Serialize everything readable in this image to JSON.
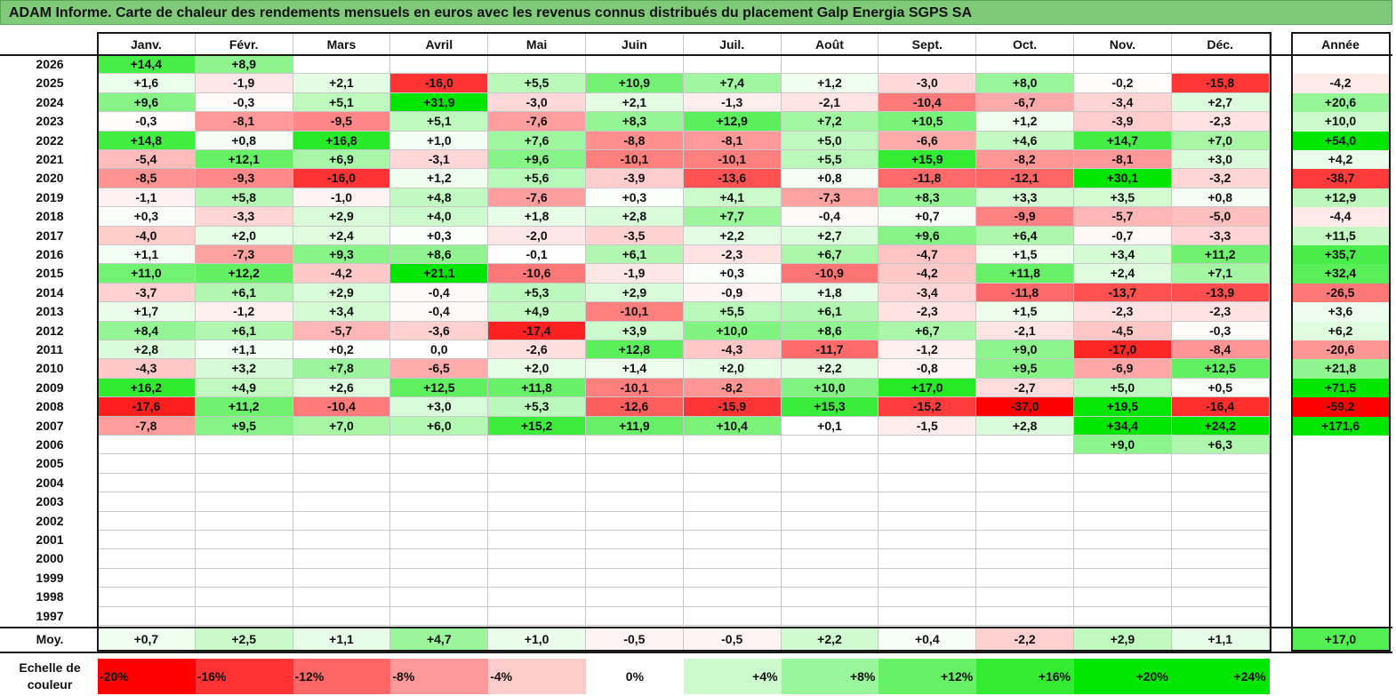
{
  "title": "ADAM Informe. Carte de chaleur des rendements mensuels en euros avec les revenus connus distribués du placement Galp Energia SGPS SA",
  "chart_data": {
    "type": "heatmap",
    "title": "ADAM Informe. Carte de chaleur des rendements mensuels en euros avec les revenus connus distribués du placement Galp Energia SGPS SA",
    "months": [
      "Janv.",
      "Févr.",
      "Mars",
      "Avril",
      "Mai",
      "Juin",
      "Juil.",
      "Août",
      "Sept.",
      "Oct.",
      "Nov.",
      "Déc."
    ],
    "year_header": "Année",
    "rows": [
      {
        "year": "2026",
        "values": [
          "+14,4",
          "+8,9",
          "",
          "",
          "",
          "",
          "",
          "",
          "",
          "",
          "",
          ""
        ],
        "annual": ""
      },
      {
        "year": "2025",
        "values": [
          "+1,6",
          "-1,9",
          "+2,1",
          "-16,0",
          "+5,5",
          "+10,9",
          "+7,4",
          "+1,2",
          "-3,0",
          "+8,0",
          "-0,2",
          "-15,8"
        ],
        "annual": "-4,2"
      },
      {
        "year": "2024",
        "values": [
          "+9,6",
          "-0,3",
          "+5,1",
          "+31,9",
          "-3,0",
          "+2,1",
          "-1,3",
          "-2,1",
          "-10,4",
          "-6,7",
          "-3,4",
          "+2,7"
        ],
        "annual": "+20,6"
      },
      {
        "year": "2023",
        "values": [
          "-0,3",
          "-8,1",
          "-9,5",
          "+5,1",
          "-7,6",
          "+8,3",
          "+12,9",
          "+7,2",
          "+10,5",
          "+1,2",
          "-3,9",
          "-2,3"
        ],
        "annual": "+10,0"
      },
      {
        "year": "2022",
        "values": [
          "+14,8",
          "+0,8",
          "+16,8",
          "+1,0",
          "+7,6",
          "-8,8",
          "-8,1",
          "+5,0",
          "-6,6",
          "+4,6",
          "+14,7",
          "+7,0"
        ],
        "annual": "+54,0"
      },
      {
        "year": "2021",
        "values": [
          "-5,4",
          "+12,1",
          "+6,9",
          "-3,1",
          "+9,6",
          "-10,1",
          "-10,1",
          "+5,5",
          "+15,9",
          "-8,2",
          "-8,1",
          "+3,0"
        ],
        "annual": "+4,2"
      },
      {
        "year": "2020",
        "values": [
          "-8,5",
          "-9,3",
          "-16,0",
          "+1,2",
          "+5,6",
          "-3,9",
          "-13,6",
          "+0,8",
          "-11,8",
          "-12,1",
          "+30,1",
          "-3,2"
        ],
        "annual": "-38,7"
      },
      {
        "year": "2019",
        "values": [
          "-1,1",
          "+5,8",
          "-1,0",
          "+4,8",
          "-7,6",
          "+0,3",
          "+4,1",
          "-7,3",
          "+8,3",
          "+3,3",
          "+3,5",
          "+0,8"
        ],
        "annual": "+12,9"
      },
      {
        "year": "2018",
        "values": [
          "+0,3",
          "-3,3",
          "+2,9",
          "+4,0",
          "+1,8",
          "+2,8",
          "+7,7",
          "-0,4",
          "+0,7",
          "-9,9",
          "-5,7",
          "-5,0"
        ],
        "annual": "-4,4"
      },
      {
        "year": "2017",
        "values": [
          "-4,0",
          "+2,0",
          "+2,4",
          "+0,3",
          "-2,0",
          "-3,5",
          "+2,2",
          "+2,7",
          "+9,6",
          "+6,4",
          "-0,7",
          "-3,3"
        ],
        "annual": "+11,5"
      },
      {
        "year": "2016",
        "values": [
          "+1,1",
          "-7,3",
          "+9,3",
          "+8,6",
          "-0,1",
          "+6,1",
          "-2,3",
          "+6,7",
          "-4,7",
          "+1,5",
          "+3,4",
          "+11,2"
        ],
        "annual": "+35,7"
      },
      {
        "year": "2015",
        "values": [
          "+11,0",
          "+12,2",
          "-4,2",
          "+21,1",
          "-10,6",
          "-1,9",
          "+0,3",
          "-10,9",
          "-4,2",
          "+11,8",
          "+2,4",
          "+7,1"
        ],
        "annual": "+32,4"
      },
      {
        "year": "2014",
        "values": [
          "-3,7",
          "+6,1",
          "+2,9",
          "-0,4",
          "+5,3",
          "+2,9",
          "-0,9",
          "+1,8",
          "-3,4",
          "-11,8",
          "-13,7",
          "-13,9"
        ],
        "annual": "-26,5"
      },
      {
        "year": "2013",
        "values": [
          "+1,7",
          "-1,2",
          "+3,4",
          "-0,4",
          "+4,9",
          "-10,1",
          "+5,5",
          "+6,1",
          "-2,3",
          "+1,5",
          "-2,3",
          "-2,3"
        ],
        "annual": "+3,6"
      },
      {
        "year": "2012",
        "values": [
          "+8,4",
          "+6,1",
          "-5,7",
          "-3,6",
          "-17,4",
          "+3,9",
          "+10,0",
          "+8,6",
          "+6,7",
          "-2,1",
          "-4,5",
          "-0,3"
        ],
        "annual": "+6,2"
      },
      {
        "year": "2011",
        "values": [
          "+2,8",
          "+1,1",
          "+0,2",
          "0,0",
          "-2,6",
          "+12,8",
          "-4,3",
          "-11,7",
          "-1,2",
          "+9,0",
          "-17,0",
          "-8,4"
        ],
        "annual": "-20,6"
      },
      {
        "year": "2010",
        "values": [
          "-4,3",
          "+3,2",
          "+7,8",
          "-6,5",
          "+2,0",
          "+1,4",
          "+2,0",
          "+2,2",
          "-0,8",
          "+9,5",
          "-6,9",
          "+12,5"
        ],
        "annual": "+21,8"
      },
      {
        "year": "2009",
        "values": [
          "+16,2",
          "+4,9",
          "+2,6",
          "+12,5",
          "+11,8",
          "-10,1",
          "-8,2",
          "+10,0",
          "+17,0",
          "-2,7",
          "+5,0",
          "+0,5"
        ],
        "annual": "+71,5"
      },
      {
        "year": "2008",
        "values": [
          "-17,6",
          "+11,2",
          "-10,4",
          "+3,0",
          "+5,3",
          "-12,6",
          "-15,9",
          "+15,3",
          "-15,2",
          "-37,0",
          "+19,5",
          "-16,4"
        ],
        "annual": "-59,2"
      },
      {
        "year": "2007",
        "values": [
          "-7,8",
          "+9,5",
          "+7,0",
          "+6,0",
          "+15,2",
          "+11,9",
          "+10,4",
          "+0,1",
          "-1,5",
          "+2,8",
          "+34,4",
          "+24,2"
        ],
        "annual": "+171,6"
      },
      {
        "year": "2006",
        "values": [
          "",
          "",
          "",
          "",
          "",
          "",
          "",
          "",
          "",
          "",
          "+9,0",
          "+6,3"
        ],
        "annual": ""
      },
      {
        "year": "2005",
        "values": [
          "",
          "",
          "",
          "",
          "",
          "",
          "",
          "",
          "",
          "",
          "",
          ""
        ],
        "annual": ""
      },
      {
        "year": "2004",
        "values": [
          "",
          "",
          "",
          "",
          "",
          "",
          "",
          "",
          "",
          "",
          "",
          ""
        ],
        "annual": ""
      },
      {
        "year": "2003",
        "values": [
          "",
          "",
          "",
          "",
          "",
          "",
          "",
          "",
          "",
          "",
          "",
          ""
        ],
        "annual": ""
      },
      {
        "year": "2002",
        "values": [
          "",
          "",
          "",
          "",
          "",
          "",
          "",
          "",
          "",
          "",
          "",
          ""
        ],
        "annual": ""
      },
      {
        "year": "2001",
        "values": [
          "",
          "",
          "",
          "",
          "",
          "",
          "",
          "",
          "",
          "",
          "",
          ""
        ],
        "annual": ""
      },
      {
        "year": "2000",
        "values": [
          "",
          "",
          "",
          "",
          "",
          "",
          "",
          "",
          "",
          "",
          "",
          ""
        ],
        "annual": ""
      },
      {
        "year": "1999",
        "values": [
          "",
          "",
          "",
          "",
          "",
          "",
          "",
          "",
          "",
          "",
          "",
          ""
        ],
        "annual": ""
      },
      {
        "year": "1998",
        "values": [
          "",
          "",
          "",
          "",
          "",
          "",
          "",
          "",
          "",
          "",
          "",
          ""
        ],
        "annual": ""
      },
      {
        "year": "1997",
        "values": [
          "",
          "",
          "",
          "",
          "",
          "",
          "",
          "",
          "",
          "",
          "",
          ""
        ],
        "annual": ""
      }
    ],
    "average": {
      "label": "Moy.",
      "values": [
        "+0,7",
        "+2,5",
        "+1,1",
        "+4,7",
        "+1,0",
        "-0,5",
        "-0,5",
        "+2,2",
        "+0,4",
        "-2,2",
        "+2,9",
        "+1,1"
      ],
      "annual": "+17,0"
    },
    "color_scale": {
      "label": "Echelle de couleur",
      "stops": [
        "-20%",
        "-16%",
        "-12%",
        "-8%",
        "-4%",
        "0%",
        "+4%",
        "+8%",
        "+12%",
        "+16%",
        "+20%",
        "+24%"
      ],
      "stop_values": [
        -20,
        -16,
        -12,
        -8,
        -4,
        0,
        4,
        8,
        12,
        16,
        20,
        24
      ]
    },
    "colors": {
      "negative": "#ff0000",
      "neutral": "#ffffff",
      "positive": "#00e600",
      "title_bar": "#7fca78"
    }
  }
}
